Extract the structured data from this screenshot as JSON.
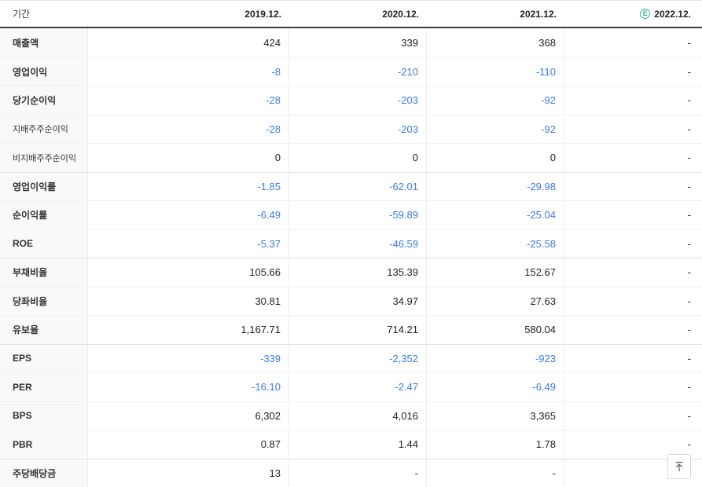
{
  "header": {
    "period_label": "기간",
    "columns": [
      "2019.12.",
      "2020.12.",
      "2021.12.",
      "2022.12."
    ],
    "estimate_column_index": 3,
    "estimate_icon": "E"
  },
  "table": {
    "rows": [
      {
        "label": "매출액",
        "values": [
          "424",
          "339",
          "368",
          "-"
        ]
      },
      {
        "label": "영업이익",
        "values": [
          "-8",
          "-210",
          "-110",
          "-"
        ]
      },
      {
        "label": "당기순이익",
        "values": [
          "-28",
          "-203",
          "-92",
          "-"
        ]
      },
      {
        "label": "지배주주순이익",
        "sub": true,
        "values": [
          "-28",
          "-203",
          "-92",
          "-"
        ]
      },
      {
        "label": "비지배주주순이익",
        "sub": true,
        "values": [
          "0",
          "0",
          "0",
          "-"
        ]
      },
      {
        "label": "영업이익률",
        "section_start": true,
        "values": [
          "-1.85",
          "-62.01",
          "-29.98",
          "-"
        ]
      },
      {
        "label": "순이익률",
        "values": [
          "-6.49",
          "-59.89",
          "-25.04",
          "-"
        ]
      },
      {
        "label": "ROE",
        "values": [
          "-5.37",
          "-46.59",
          "-25.58",
          "-"
        ]
      },
      {
        "label": "부채비율",
        "section_start": true,
        "values": [
          "105.66",
          "135.39",
          "152.67",
          "-"
        ]
      },
      {
        "label": "당좌비율",
        "values": [
          "30.81",
          "34.97",
          "27.63",
          "-"
        ]
      },
      {
        "label": "유보율",
        "values": [
          "1,167.71",
          "714.21",
          "580.04",
          "-"
        ]
      },
      {
        "label": "EPS",
        "section_start": true,
        "values": [
          "-339",
          "-2,352",
          "-923",
          "-"
        ]
      },
      {
        "label": "PER",
        "values": [
          "-16.10",
          "-2.47",
          "-6.49",
          "-"
        ]
      },
      {
        "label": "BPS",
        "values": [
          "6,302",
          "4,016",
          "3,365",
          "-"
        ]
      },
      {
        "label": "PBR",
        "values": [
          "0.87",
          "1.44",
          "1.78",
          "-"
        ]
      },
      {
        "label": "주당배당금",
        "section_start": true,
        "values": [
          "13",
          "-",
          "-",
          "-"
        ]
      }
    ]
  },
  "scroll_top_button": {
    "icon": "arrow-up-to-top"
  },
  "colors": {
    "negative": "#3e7ce5",
    "text": "#222222",
    "estimate": "#2fb59a"
  }
}
